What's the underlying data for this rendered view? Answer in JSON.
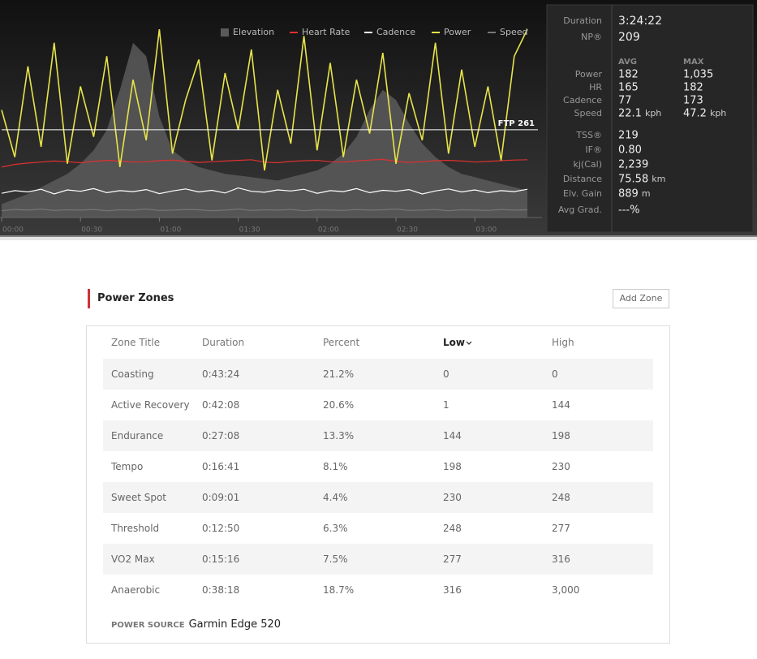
{
  "chart_data": {
    "type": "line",
    "x": [
      0,
      5,
      10,
      15,
      20,
      25,
      30,
      35,
      40,
      45,
      50,
      55,
      60,
      65,
      70,
      75,
      80,
      85,
      90,
      95,
      100,
      105,
      110,
      115,
      120,
      125,
      130,
      135,
      140,
      145,
      150,
      155,
      160,
      165,
      170,
      175,
      180,
      185,
      190,
      195,
      200
    ],
    "xlim": [
      0,
      204
    ],
    "xticks": [
      {
        "value": 0,
        "label": "00:00"
      },
      {
        "value": 30,
        "label": "00:30"
      },
      {
        "value": 60,
        "label": "01:00"
      },
      {
        "value": 90,
        "label": "01:30"
      },
      {
        "value": 120,
        "label": "02:00"
      },
      {
        "value": 150,
        "label": "02:30"
      },
      {
        "value": 180,
        "label": "03:00"
      }
    ],
    "ylim": [
      0,
      640
    ],
    "series": [
      {
        "name": "Elevation",
        "color": "#5a5a5a",
        "values": [
          40,
          55,
          70,
          90,
          110,
          130,
          160,
          200,
          260,
          380,
          520,
          480,
          300,
          200,
          170,
          150,
          140,
          130,
          125,
          120,
          115,
          110,
          120,
          130,
          140,
          160,
          190,
          240,
          320,
          380,
          350,
          280,
          220,
          180,
          150,
          130,
          120,
          110,
          100,
          90,
          80
        ]
      },
      {
        "name": "Heart Rate",
        "color": "#e03030",
        "values": [
          150,
          158,
          162,
          165,
          168,
          166,
          163,
          167,
          170,
          168,
          165,
          166,
          169,
          171,
          167,
          164,
          166,
          168,
          170,
          172,
          165,
          163,
          167,
          169,
          170,
          166,
          165,
          168,
          171,
          173,
          167,
          164,
          166,
          169,
          170,
          168,
          165,
          167,
          169,
          171,
          172
        ]
      },
      {
        "name": "Cadence",
        "color": "#ffffff",
        "values": [
          72,
          80,
          76,
          84,
          70,
          82,
          78,
          86,
          74,
          80,
          77,
          83,
          71,
          79,
          85,
          76,
          81,
          73,
          88,
          78,
          75,
          82,
          79,
          84,
          72,
          80,
          77,
          86,
          74,
          81,
          78,
          83,
          70,
          79,
          85,
          76,
          82,
          74,
          80,
          77,
          84
        ]
      },
      {
        "name": "Power",
        "color": "#e8e44a",
        "values": [
          320,
          180,
          450,
          210,
          520,
          160,
          390,
          240,
          480,
          150,
          410,
          230,
          560,
          190,
          350,
          470,
          170,
          430,
          260,
          500,
          140,
          380,
          220,
          540,
          200,
          460,
          180,
          410,
          250,
          490,
          160,
          370,
          230,
          520,
          190,
          440,
          210,
          390,
          170,
          480,
          560
        ]
      },
      {
        "name": "Speed",
        "color": "#777777",
        "values": [
          20,
          24,
          22,
          25,
          21,
          23,
          22,
          24,
          20,
          23,
          22,
          25,
          21,
          22,
          24,
          23,
          20,
          22,
          25,
          21,
          23,
          22,
          24,
          20,
          23,
          22,
          21,
          24,
          22,
          23,
          25,
          21,
          22,
          24,
          20,
          23,
          22,
          21,
          24,
          22,
          23
        ]
      }
    ],
    "ftp": {
      "label": "FTP 261",
      "value": 261
    }
  },
  "stats": {
    "top": [
      {
        "label": "Duration",
        "value": "3:24:22"
      },
      {
        "label": "NP®",
        "value": "209"
      }
    ],
    "headers": [
      "AVG",
      "MAX"
    ],
    "rows": [
      {
        "label": "Power",
        "avg": "182",
        "max": "1,035"
      },
      {
        "label": "HR",
        "avg": "165",
        "max": "182"
      },
      {
        "label": "Cadence",
        "avg": "77",
        "max": "173"
      },
      {
        "label": "Speed",
        "avg": "22.1",
        "avg_unit": "kph",
        "max": "47.2",
        "max_unit": "kph"
      }
    ],
    "bottom": [
      {
        "label": "TSS®",
        "value": "219"
      },
      {
        "label": "IF®",
        "value": "0.80"
      },
      {
        "label": "kj(Cal)",
        "value": "2,239"
      },
      {
        "label": "Distance",
        "value": "75.58",
        "unit": "km"
      },
      {
        "label": "Elv. Gain",
        "value": "889",
        "unit": "m"
      },
      {
        "label": "Avg Grad.",
        "value": "---%"
      }
    ]
  },
  "power_zones": {
    "title": "Power Zones",
    "button": "Add Zone",
    "columns": [
      "Zone Title",
      "Duration",
      "Percent",
      "Low",
      "High"
    ],
    "rows": [
      [
        "Coasting",
        "0:43:24",
        "21.2%",
        "0",
        "0"
      ],
      [
        "Active Recovery",
        "0:42:08",
        "20.6%",
        "1",
        "144"
      ],
      [
        "Endurance",
        "0:27:08",
        "13.3%",
        "144",
        "198"
      ],
      [
        "Tempo",
        "0:16:41",
        "8.1%",
        "198",
        "230"
      ],
      [
        "Sweet Spot",
        "0:09:01",
        "4.4%",
        "230",
        "248"
      ],
      [
        "Threshold",
        "0:12:50",
        "6.3%",
        "248",
        "277"
      ],
      [
        "VO2 Max",
        "0:15:16",
        "7.5%",
        "277",
        "316"
      ],
      [
        "Anaerobic",
        "0:38:18",
        "18.7%",
        "316",
        "3,000"
      ]
    ],
    "source_label": "POWER SOURCE",
    "source": "Garmin Edge 520"
  }
}
